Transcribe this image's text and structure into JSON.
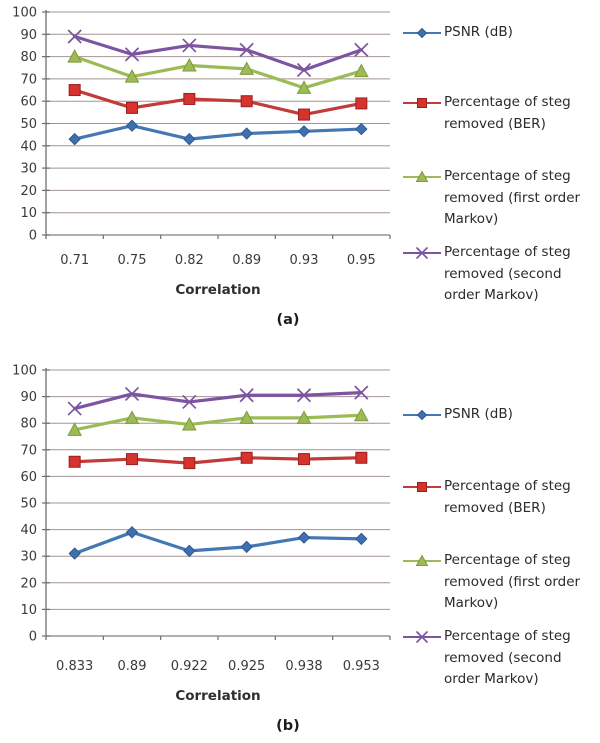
{
  "figure": {
    "panel_a_label": "(a)",
    "panel_b_label": "(b)"
  },
  "palette": {
    "grid_color": "#a39494",
    "zero_line_color": "#8a7b7b",
    "axis_color": "#6e6e6e",
    "tick_text_color": "#3a3a3a"
  },
  "chart_data": [
    {
      "type": "line",
      "panel": "(a)",
      "categories": [
        "0.71",
        "0.75",
        "0.82",
        "0.89",
        "0.93",
        "0.95"
      ],
      "xlabel": "Correlation",
      "ylabel": "",
      "ylim": [
        0,
        100
      ],
      "ytick_step": 10,
      "grid": true,
      "legend_position": "right",
      "series": [
        {
          "name": "PSNR (dB)",
          "marker": "diamond",
          "line_color": "#4478b5",
          "marker_fill": "#3f6fae",
          "marker_edge": "#2e5a94",
          "values": [
            43,
            49,
            43,
            45.5,
            46.5,
            47.5
          ]
        },
        {
          "name": "Percentage of steg removed (BER)",
          "marker": "square",
          "line_color": "#c23b38",
          "marker_fill": "#d6322e",
          "marker_edge": "#9a211e",
          "values": [
            65,
            57,
            61,
            60,
            54,
            59
          ]
        },
        {
          "name": "Percentage of steg removed (first order Markov)",
          "marker": "triangle",
          "line_color": "#9cbb55",
          "marker_fill": "#9cbb55",
          "marker_edge": "#7e9a3c",
          "values": [
            80,
            71,
            76,
            74.5,
            66,
            73.5
          ]
        },
        {
          "name": "Percentage of steg removed (second order Markov)",
          "marker": "x",
          "line_color": "#7d54a2",
          "marker_fill": "#7d54a2",
          "marker_edge": "#7d54a2",
          "values": [
            89,
            81,
            85,
            83,
            74,
            83
          ]
        }
      ]
    },
    {
      "type": "line",
      "panel": "(b)",
      "categories": [
        "0.833",
        "0.89",
        "0.922",
        "0.925",
        "0.938",
        "0.953"
      ],
      "xlabel": "Correlation",
      "ylabel": "",
      "ylim": [
        0,
        100
      ],
      "ytick_step": 10,
      "grid": true,
      "legend_position": "right",
      "series": [
        {
          "name": "PSNR (dB)",
          "marker": "diamond",
          "line_color": "#4478b5",
          "marker_fill": "#3f6fae",
          "marker_edge": "#2e5a94",
          "values": [
            31,
            39,
            32,
            33.5,
            37,
            36.5
          ]
        },
        {
          "name": "Percentage of steg removed (BER)",
          "marker": "square",
          "line_color": "#c23b38",
          "marker_fill": "#d6322e",
          "marker_edge": "#9a211e",
          "values": [
            65.5,
            66.5,
            65,
            67,
            66.5,
            67
          ]
        },
        {
          "name": "Percentage of steg removed (first order Markov)",
          "marker": "triangle",
          "line_color": "#9cbb55",
          "marker_fill": "#9cbb55",
          "marker_edge": "#7e9a3c",
          "values": [
            77.5,
            82,
            79.5,
            82,
            82,
            83
          ]
        },
        {
          "name": "Percentage of steg removed (second order Markov)",
          "marker": "x",
          "line_color": "#7d54a2",
          "marker_fill": "#7d54a2",
          "marker_edge": "#7d54a2",
          "values": [
            85.5,
            91,
            88,
            90.5,
            90.5,
            91.5
          ]
        }
      ]
    }
  ]
}
